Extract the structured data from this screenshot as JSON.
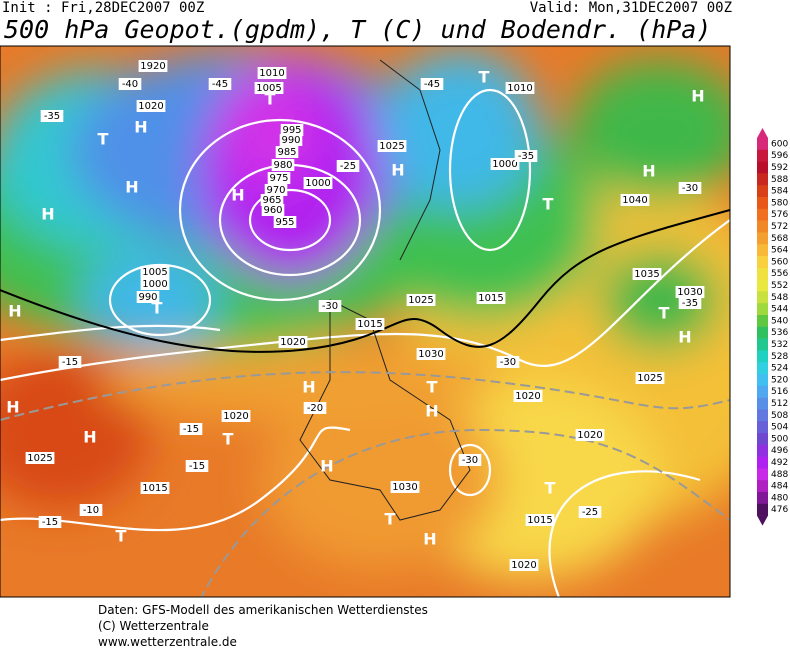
{
  "header": {
    "init": "Init : Fri,28DEC2007 00Z",
    "valid": "Valid: Mon,31DEC2007 00Z",
    "title": "500 hPa Geopot.(gpdm), T (C) und Bodendr. (hPa)"
  },
  "map": {
    "labels": [
      "1920",
      "-40",
      "-35",
      "1020",
      "H",
      "T",
      "H",
      "1010",
      "1005",
      "-45",
      "T",
      "995",
      "990",
      "985",
      "980",
      "975",
      "970",
      "965",
      "960",
      "955",
      "1000",
      "H",
      "-25",
      "1025",
      "H",
      "T",
      "-45",
      "1010",
      "1000",
      "-35",
      "H",
      "-30",
      "1040",
      "T",
      "1035",
      "1030",
      "-35",
      "T",
      "H",
      "1005",
      "1000",
      "990",
      "T",
      "1015",
      "1020",
      "-30",
      "1025",
      "1015",
      "1030",
      "H",
      "-20",
      "H",
      "H",
      "1025",
      "-15",
      "1020",
      "H",
      "T",
      "-15",
      "H",
      "1030",
      "T",
      "H",
      "-30",
      "T",
      "-25",
      "1015",
      "1020",
      "1015",
      "T",
      "1020",
      "-15",
      "-10",
      "1020",
      "H",
      "-15",
      "1025",
      "-30",
      "T",
      "H",
      "H"
    ]
  },
  "colorbar": {
    "ticks": [
      600,
      596,
      592,
      588,
      584,
      580,
      576,
      572,
      568,
      564,
      560,
      556,
      552,
      548,
      544,
      540,
      536,
      532,
      528,
      524,
      520,
      516,
      512,
      508,
      504,
      500,
      496,
      492,
      488,
      484,
      480,
      476
    ],
    "colors": [
      "#d8287a",
      "#c8183c",
      "#b8102a",
      "#c82820",
      "#d84018",
      "#e85818",
      "#f07020",
      "#f08828",
      "#f4a030",
      "#f8b838",
      "#f8d040",
      "#f0e040",
      "#e8e840",
      "#c8e040",
      "#a0d840",
      "#60c840",
      "#30c060",
      "#20c890",
      "#20d0c0",
      "#30d0e0",
      "#40c0f0",
      "#50a8f0",
      "#5890e8",
      "#6078e0",
      "#6860d8",
      "#7048d0",
      "#9030e0",
      "#b020f0",
      "#c828e8",
      "#b020c0",
      "#801898",
      "#501060"
    ]
  },
  "footer": [
    "Daten: GFS-Modell des amerikanischen Wetterdienstes",
    "(C) Wetterzentrale",
    "www.wetterzentrale.de"
  ]
}
